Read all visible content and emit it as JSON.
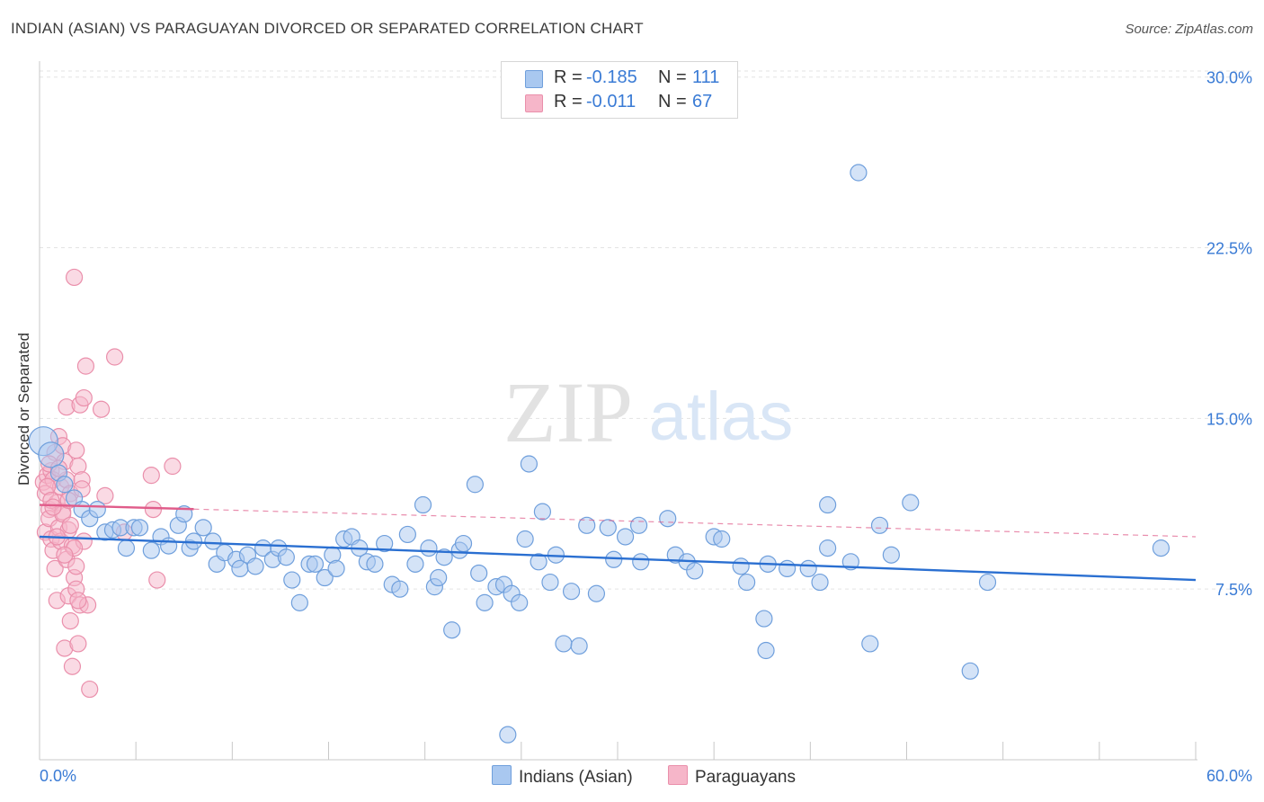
{
  "title": "INDIAN (ASIAN) VS PARAGUAYAN DIVORCED OR SEPARATED CORRELATION CHART",
  "source": "Source: ZipAtlas.com",
  "watermark": {
    "zip": "ZIP",
    "atlas": "atlas"
  },
  "legend": {
    "r_label": "R =",
    "n_label": "N =",
    "series": [
      {
        "r": "-0.185",
        "n": "111"
      },
      {
        "r": "-0.011",
        "n": "67"
      }
    ]
  },
  "bottom_legend": [
    "Indians (Asian)",
    "Paraguayans"
  ],
  "colors": {
    "blue_fill": "#a9c8f0",
    "blue_stroke": "#6f9fdc",
    "blue_line": "#2a6fd1",
    "pink_fill": "#f6b6c9",
    "pink_stroke": "#ea8fab",
    "pink_line": "#e05c8a",
    "grid": "#e3e3e3",
    "tick_text": "#3a7bd5"
  },
  "chart_data": {
    "type": "scatter",
    "title": "INDIAN (ASIAN) VS PARAGUAYAN DIVORCED OR SEPARATED CORRELATION CHART",
    "xlabel": "",
    "ylabel": "Divorced or Separated",
    "xlim": [
      0,
      60
    ],
    "ylim": [
      0,
      30.7
    ],
    "x_tick_labels": [
      "0.0%",
      "60.0%"
    ],
    "y_ticks": [
      7.5,
      15.0,
      22.5,
      30.0
    ],
    "y_tick_labels": [
      "7.5%",
      "15.0%",
      "22.5%",
      "30.0%"
    ],
    "series": [
      {
        "name": "Indians (Asian)",
        "r": -0.185,
        "n": 111,
        "trend": {
          "x0": 0,
          "y0": 9.8,
          "x1": 60,
          "y1": 7.9
        },
        "points": [
          [
            0.2,
            14.0
          ],
          [
            0.6,
            13.4
          ],
          [
            1.0,
            12.6
          ],
          [
            1.3,
            12.1
          ],
          [
            1.8,
            11.5
          ],
          [
            2.2,
            11.0
          ],
          [
            2.6,
            10.6
          ],
          [
            3.0,
            11.0
          ],
          [
            3.4,
            10.0
          ],
          [
            3.8,
            10.1
          ],
          [
            4.2,
            10.2
          ],
          [
            4.5,
            9.3
          ],
          [
            4.9,
            10.2
          ],
          [
            5.2,
            10.2
          ],
          [
            5.8,
            9.2
          ],
          [
            6.3,
            9.8
          ],
          [
            6.7,
            9.4
          ],
          [
            7.2,
            10.3
          ],
          [
            7.5,
            10.8
          ],
          [
            7.8,
            9.3
          ],
          [
            8.0,
            9.6
          ],
          [
            8.5,
            10.2
          ],
          [
            9.0,
            9.6
          ],
          [
            9.2,
            8.6
          ],
          [
            9.6,
            9.1
          ],
          [
            10.2,
            8.8
          ],
          [
            10.4,
            8.4
          ],
          [
            10.8,
            9.0
          ],
          [
            11.2,
            8.5
          ],
          [
            11.6,
            9.3
          ],
          [
            12.1,
            8.8
          ],
          [
            12.4,
            9.3
          ],
          [
            12.8,
            8.9
          ],
          [
            13.1,
            7.9
          ],
          [
            13.5,
            6.9
          ],
          [
            14.0,
            8.6
          ],
          [
            14.3,
            8.6
          ],
          [
            14.8,
            8.0
          ],
          [
            15.2,
            9.0
          ],
          [
            15.4,
            8.4
          ],
          [
            15.8,
            9.7
          ],
          [
            16.2,
            9.8
          ],
          [
            16.6,
            9.3
          ],
          [
            17.0,
            8.7
          ],
          [
            17.4,
            8.6
          ],
          [
            17.9,
            9.5
          ],
          [
            18.3,
            7.7
          ],
          [
            18.7,
            7.5
          ],
          [
            19.1,
            9.9
          ],
          [
            19.5,
            8.6
          ],
          [
            19.9,
            11.2
          ],
          [
            20.2,
            9.3
          ],
          [
            20.5,
            7.6
          ],
          [
            20.7,
            8.0
          ],
          [
            21.0,
            8.9
          ],
          [
            21.4,
            5.7
          ],
          [
            21.8,
            9.2
          ],
          [
            22.0,
            9.5
          ],
          [
            22.6,
            12.1
          ],
          [
            22.8,
            8.2
          ],
          [
            23.1,
            6.9
          ],
          [
            23.7,
            7.6
          ],
          [
            24.1,
            7.7
          ],
          [
            24.5,
            7.3
          ],
          [
            24.9,
            6.9
          ],
          [
            25.2,
            9.7
          ],
          [
            25.4,
            13.0
          ],
          [
            25.9,
            8.7
          ],
          [
            26.1,
            10.9
          ],
          [
            26.5,
            7.8
          ],
          [
            26.8,
            9.0
          ],
          [
            27.2,
            5.1
          ],
          [
            27.6,
            7.4
          ],
          [
            28.0,
            5.0
          ],
          [
            28.4,
            10.3
          ],
          [
            28.9,
            7.3
          ],
          [
            29.5,
            10.2
          ],
          [
            29.8,
            8.8
          ],
          [
            30.4,
            9.8
          ],
          [
            31.1,
            10.3
          ],
          [
            31.2,
            8.7
          ],
          [
            32.6,
            10.6
          ],
          [
            33.0,
            9.0
          ],
          [
            33.6,
            8.7
          ],
          [
            34.0,
            8.3
          ],
          [
            35.0,
            9.8
          ],
          [
            35.4,
            9.7
          ],
          [
            36.4,
            8.5
          ],
          [
            36.7,
            7.8
          ],
          [
            37.6,
            6.2
          ],
          [
            37.8,
            8.6
          ],
          [
            37.7,
            4.8
          ],
          [
            38.8,
            8.4
          ],
          [
            39.9,
            8.4
          ],
          [
            40.5,
            7.8
          ],
          [
            40.9,
            9.3
          ],
          [
            40.9,
            11.2
          ],
          [
            42.1,
            8.7
          ],
          [
            42.5,
            25.8
          ],
          [
            43.1,
            5.1
          ],
          [
            43.6,
            10.3
          ],
          [
            44.2,
            9.0
          ],
          [
            45.2,
            11.3
          ],
          [
            48.3,
            3.9
          ],
          [
            49.2,
            7.8
          ],
          [
            58.2,
            9.3
          ],
          [
            24.3,
            1.1
          ]
        ]
      },
      {
        "name": "Paraguayans",
        "r": -0.011,
        "n": 67,
        "trend": {
          "x0": 0,
          "y0": 11.2,
          "x1": 60,
          "y1": 9.8
        },
        "trend_solid_end_x": 8.0,
        "points": [
          [
            0.2,
            12.2
          ],
          [
            0.3,
            11.7
          ],
          [
            0.3,
            10.0
          ],
          [
            0.4,
            12.5
          ],
          [
            0.5,
            11.0
          ],
          [
            0.5,
            10.6
          ],
          [
            0.6,
            12.7
          ],
          [
            0.6,
            9.7
          ],
          [
            0.7,
            12.3
          ],
          [
            0.7,
            9.2
          ],
          [
            0.8,
            13.5
          ],
          [
            0.8,
            8.4
          ],
          [
            0.9,
            11.3
          ],
          [
            0.9,
            7.0
          ],
          [
            1.0,
            14.2
          ],
          [
            1.0,
            10.2
          ],
          [
            1.1,
            12.0
          ],
          [
            1.1,
            9.6
          ],
          [
            1.2,
            13.8
          ],
          [
            1.2,
            10.9
          ],
          [
            1.3,
            13.1
          ],
          [
            1.3,
            4.9
          ],
          [
            1.4,
            12.3
          ],
          [
            1.4,
            15.5
          ],
          [
            1.5,
            10.1
          ],
          [
            1.5,
            7.2
          ],
          [
            1.6,
            11.7
          ],
          [
            1.6,
            6.1
          ],
          [
            1.7,
            9.4
          ],
          [
            1.7,
            4.1
          ],
          [
            1.8,
            21.2
          ],
          [
            1.8,
            8.0
          ],
          [
            1.9,
            13.6
          ],
          [
            1.9,
            7.5
          ],
          [
            2.0,
            12.9
          ],
          [
            2.0,
            5.1
          ],
          [
            2.1,
            15.6
          ],
          [
            2.1,
            6.8
          ],
          [
            2.2,
            12.3
          ],
          [
            2.3,
            15.9
          ],
          [
            2.3,
            9.6
          ],
          [
            2.4,
            17.3
          ],
          [
            2.5,
            6.8
          ],
          [
            2.6,
            3.1
          ],
          [
            3.2,
            15.4
          ],
          [
            3.4,
            11.6
          ],
          [
            3.9,
            17.7
          ],
          [
            4.4,
            10.0
          ],
          [
            5.8,
            12.5
          ],
          [
            5.9,
            11.0
          ],
          [
            6.1,
            7.9
          ],
          [
            6.9,
            12.9
          ],
          [
            0.4,
            12.0
          ],
          [
            0.6,
            11.4
          ],
          [
            0.9,
            9.8
          ],
          [
            1.2,
            10.8
          ],
          [
            1.4,
            8.8
          ],
          [
            1.6,
            10.3
          ],
          [
            1.8,
            9.3
          ],
          [
            2.0,
            7.0
          ],
          [
            2.2,
            11.9
          ],
          [
            0.5,
            13.0
          ],
          [
            0.7,
            11.1
          ],
          [
            1.0,
            12.8
          ],
          [
            1.3,
            9.0
          ],
          [
            1.5,
            11.4
          ],
          [
            1.9,
            8.5
          ]
        ]
      }
    ]
  }
}
